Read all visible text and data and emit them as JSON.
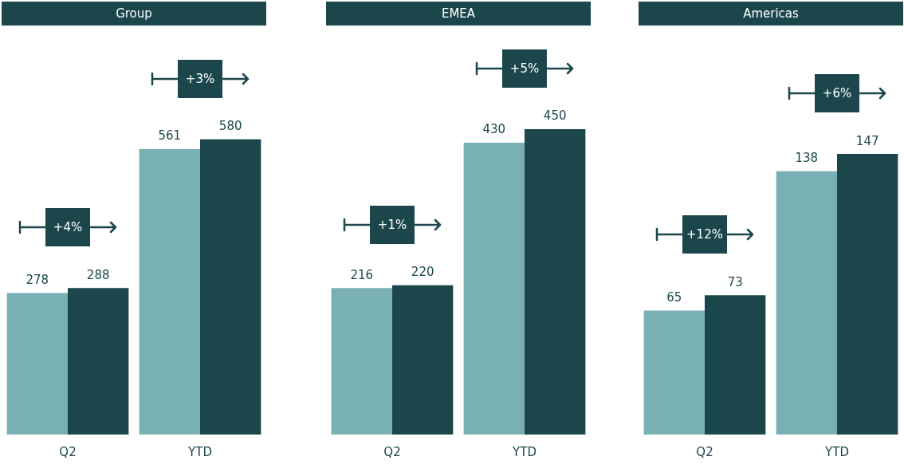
{
  "chart_data": [
    {
      "type": "bar",
      "title": "Group",
      "categories": [
        "Q2",
        "YTD"
      ],
      "series": [
        {
          "color": "#78b0b3",
          "values": [
            278,
            561
          ]
        },
        {
          "color": "#1b474c",
          "values": [
            288,
            580
          ]
        }
      ],
      "tick_labels": "x",
      "data_labels": true,
      "annotations": [
        "+4%",
        "+3%"
      ]
    },
    {
      "type": "bar",
      "title": "EMEA",
      "categories": [
        "Q2",
        "YTD"
      ],
      "series": [
        {
          "color": "#78b0b3",
          "values": [
            216,
            430
          ]
        },
        {
          "color": "#1b474c",
          "values": [
            220,
            450
          ]
        }
      ],
      "tick_labels": "x",
      "data_labels": true,
      "annotations": [
        "+1%",
        "+5%"
      ]
    },
    {
      "type": "bar",
      "title": "Americas",
      "categories": [
        "Q2",
        "YTD"
      ],
      "series": [
        {
          "color": "#78b0b3",
          "values": [
            65,
            138
          ]
        },
        {
          "color": "#1b474c",
          "values": [
            73,
            147
          ]
        }
      ],
      "tick_labels": "x",
      "data_labels": true,
      "annotations": [
        "+12%",
        "+6%"
      ]
    }
  ]
}
